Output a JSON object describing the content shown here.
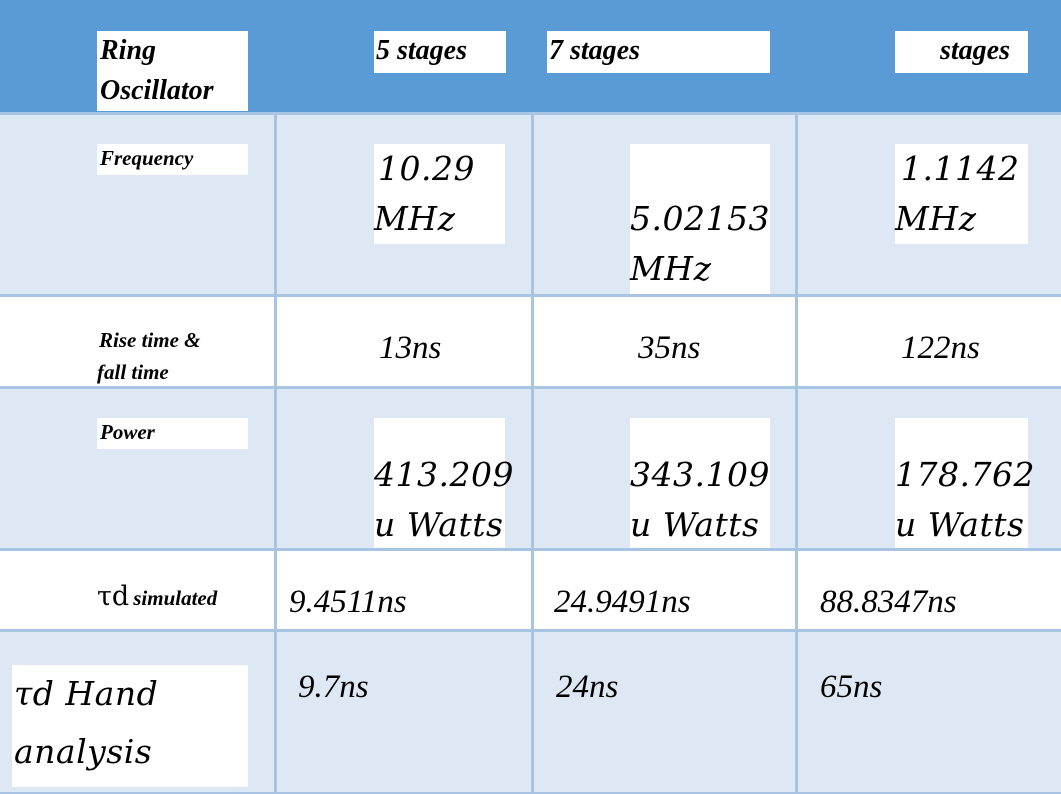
{
  "header": {
    "col1": "Ring Oscillator",
    "col1_line1": "Ring",
    "col1_line2": "Oscillator",
    "col2": "5 stages",
    "col3": "7 stages",
    "col4": "stages"
  },
  "rows": [
    {
      "label": "Frequency",
      "values": [
        {
          "l1": "10.29",
          "l2": "MHz"
        },
        {
          "l1": "5.02153",
          "l2": "MHz"
        },
        {
          "l1": "1.1142",
          "l2": "MHz"
        }
      ]
    },
    {
      "label_l1": "Rise time &",
      "label_l2": "fall time",
      "values": [
        "13ns",
        "35ns",
        "122ns"
      ]
    },
    {
      "label": "Power",
      "values": [
        {
          "l1": "413.209",
          "l2": "u Watts"
        },
        {
          "l1": "343.109",
          "l2": "u Watts"
        },
        {
          "l1": "178.762",
          "l2": "u Watts"
        }
      ]
    },
    {
      "label_symbol": "τd",
      "label_sub": "simulated",
      "values": [
        "9.4511ns",
        "24.9491ns",
        "88.8347ns"
      ]
    },
    {
      "label_l1": "τd Hand",
      "label_l2": "analysis",
      "values": [
        "9.7ns",
        "24ns",
        "65ns"
      ]
    }
  ],
  "colors": {
    "header": "#5b9bd5",
    "light_row": "#dde8f4",
    "white_row": "#ffffff",
    "border": "#a7c4e3"
  }
}
